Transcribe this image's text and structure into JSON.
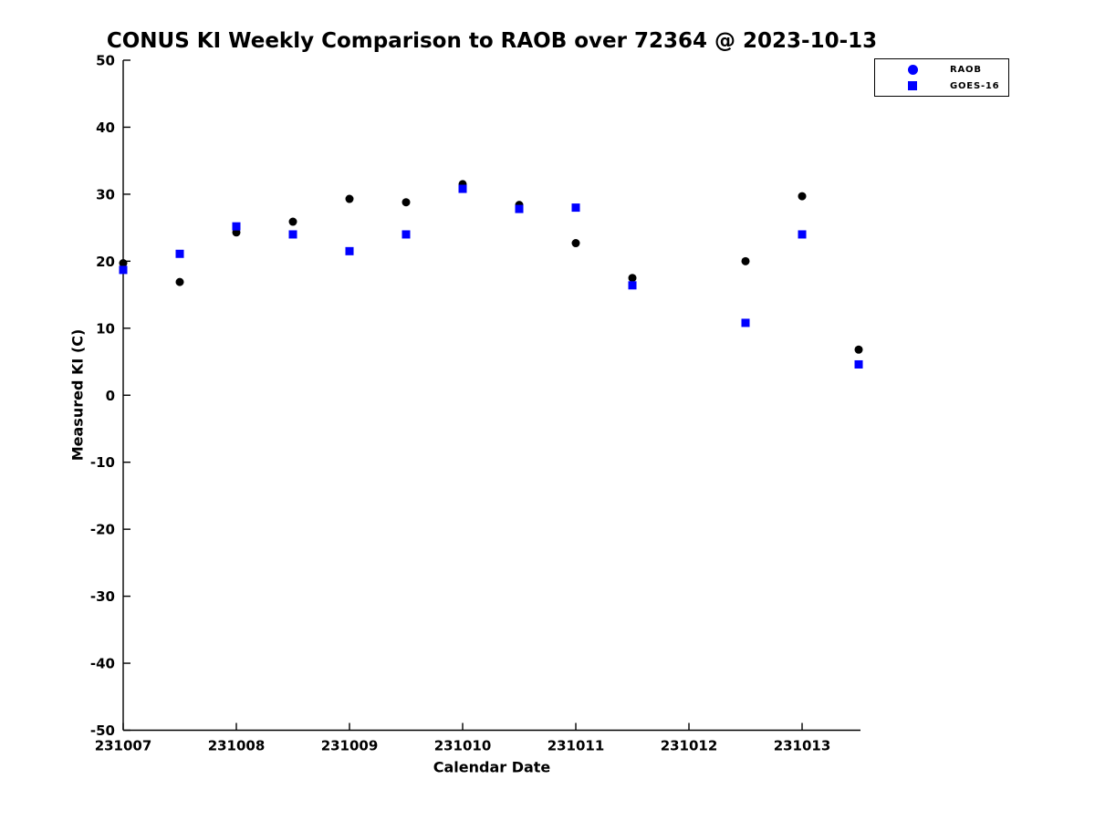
{
  "figure": {
    "background_color": "#ffffff",
    "axis_color": "#000000"
  },
  "chart_data": {
    "type": "scatter",
    "title": "CONUS KI Weekly Comparison to RAOB over 72364 @ 2023-10-13",
    "xlabel": "Calendar Date",
    "ylabel": "Measured KI (C)",
    "xlim": [
      231007,
      231013.516
    ],
    "ylim": [
      -50,
      50
    ],
    "grid": false,
    "legend_position": "top-right",
    "x_tick_labels": [
      "231007",
      "231008",
      "231009",
      "231010",
      "231011",
      "231012",
      "231013"
    ],
    "x_tick_values": [
      231007,
      231008,
      231009,
      231010,
      231011,
      231012,
      231013
    ],
    "y_tick_labels": [
      "50",
      "40",
      "30",
      "20",
      "10",
      "0",
      "-10",
      "-20",
      "-30",
      "-40",
      "-50"
    ],
    "y_tick_values": [
      50,
      40,
      30,
      20,
      10,
      0,
      -10,
      -20,
      -30,
      -40,
      -50
    ],
    "series": [
      {
        "name": "RAOB",
        "marker": "circle",
        "marker_color": "#000000",
        "legend_marker": "circle",
        "legend_color": "#0000ff",
        "x": [
          231007,
          231007.5,
          231008,
          231008.5,
          231009,
          231009.5,
          231010,
          231010.5,
          231011,
          231011.5,
          231012.5,
          231013,
          231013.5
        ],
        "y": [
          19.7,
          16.9,
          24.3,
          25.9,
          29.3,
          28.8,
          31.5,
          28.4,
          22.7,
          17.5,
          20.0,
          29.7,
          6.8
        ]
      },
      {
        "name": "GOES-16",
        "marker": "square",
        "marker_color": "#0000ff",
        "legend_marker": "square",
        "legend_color": "#0000ff",
        "x": [
          231007,
          231007.5,
          231008,
          231008.5,
          231009,
          231009.5,
          231010,
          231010.5,
          231011,
          231011.5,
          231012.5,
          231013,
          231013.5
        ],
        "y": [
          18.7,
          21.1,
          25.2,
          24.0,
          21.5,
          24.0,
          30.8,
          27.8,
          28.0,
          16.4,
          10.8,
          24.0,
          4.6
        ]
      }
    ]
  }
}
